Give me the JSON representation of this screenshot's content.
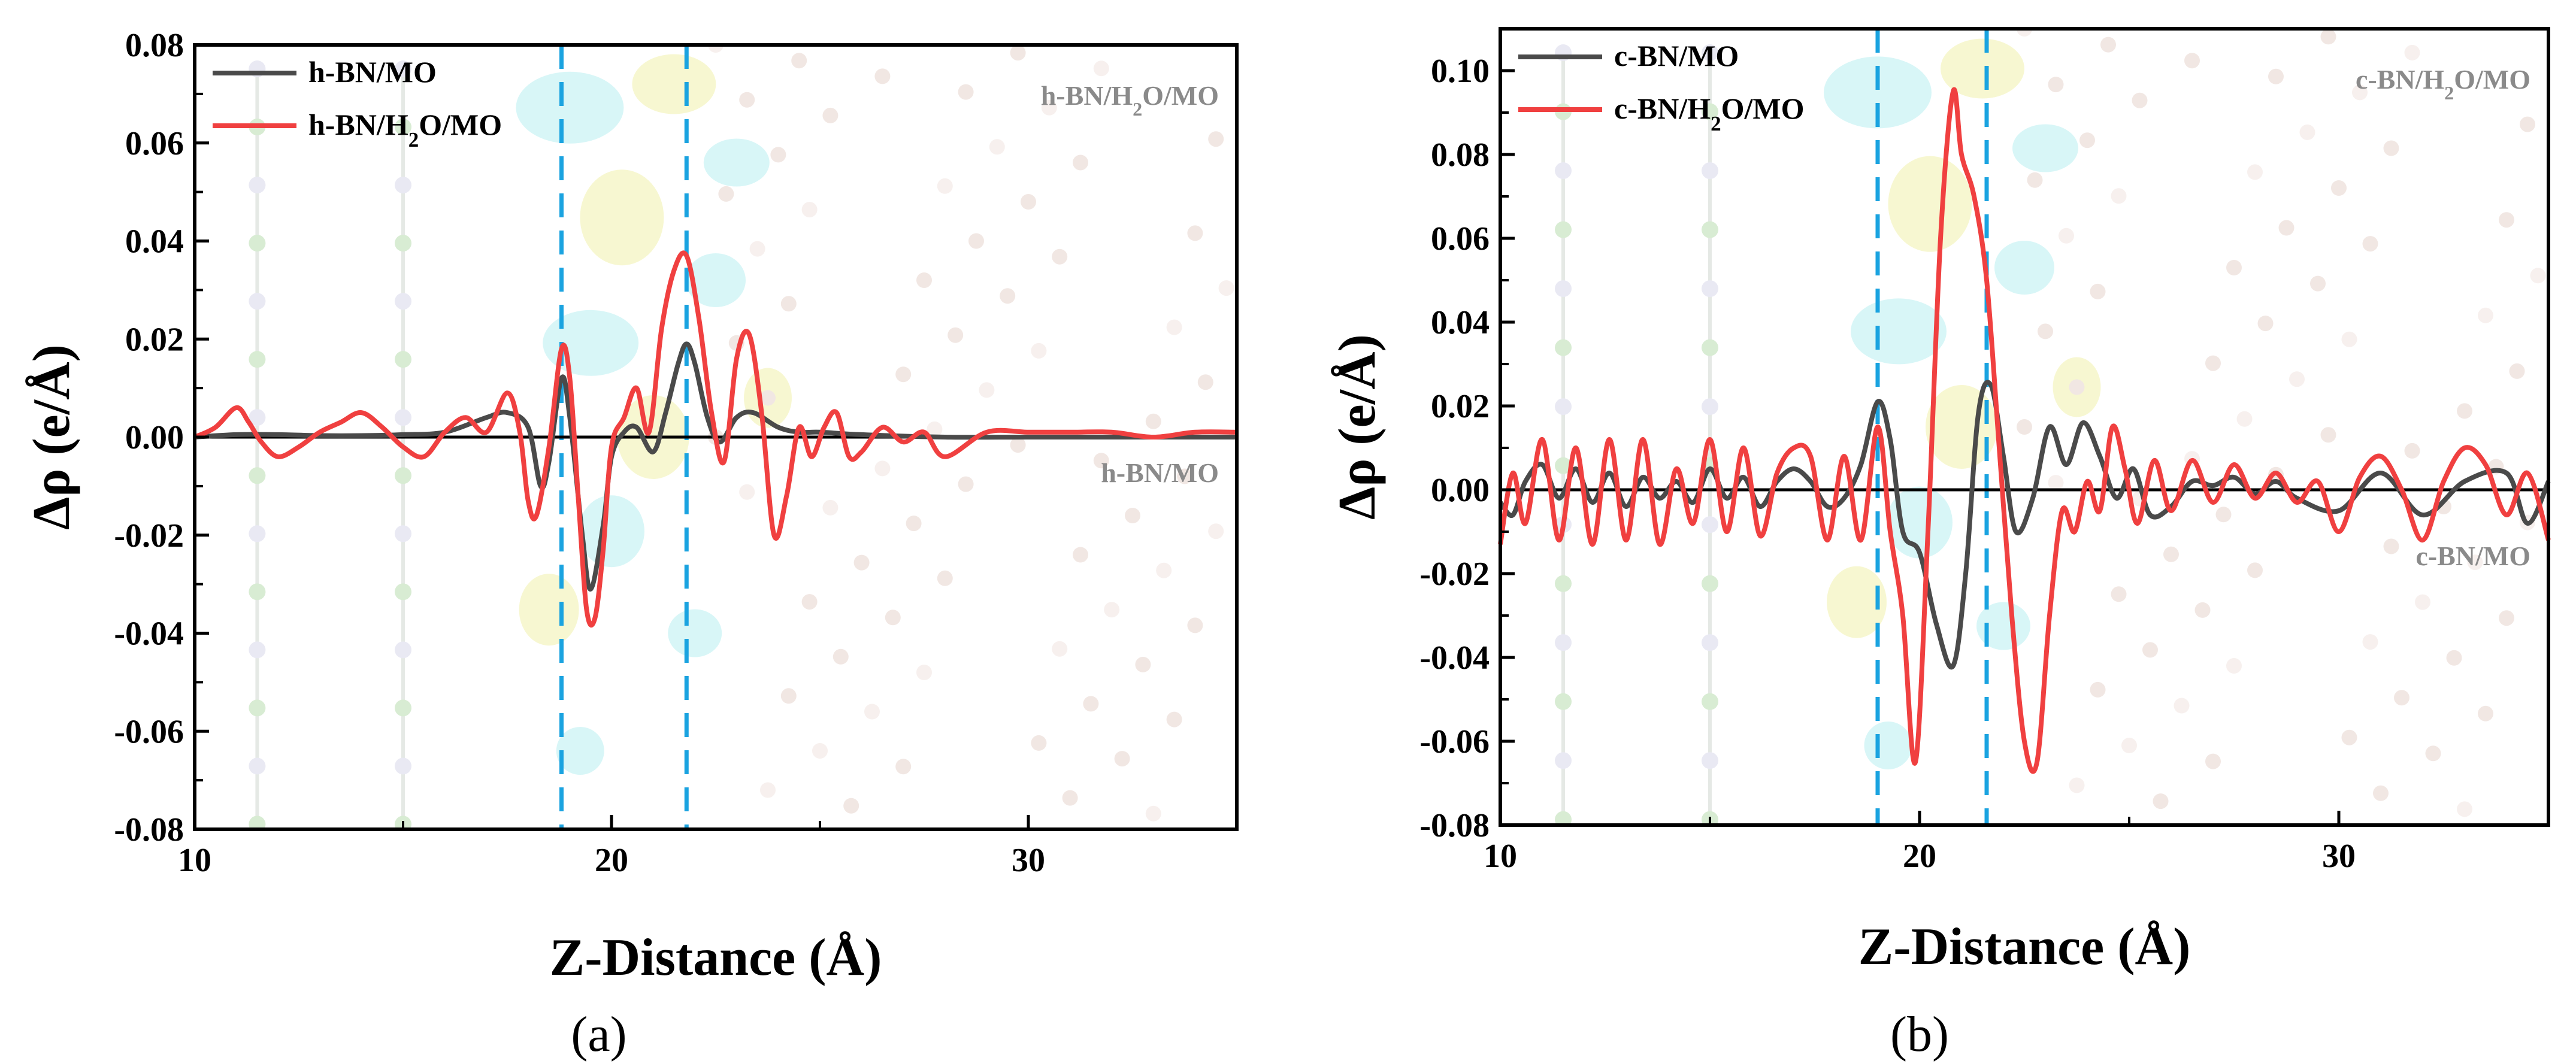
{
  "chart_data": [
    {
      "type": "line",
      "panel": "a",
      "caption": "(a)",
      "xlabel": "Z-Distance (Å)",
      "ylabel": "Δρ (e/Å)",
      "xlim": [
        10,
        35
      ],
      "ylim": [
        -0.08,
        0.08
      ],
      "xticks": [
        "10",
        "20",
        "30"
      ],
      "xtick_values": [
        10,
        20,
        30
      ],
      "yticks": [
        "-0.08",
        "-0.06",
        "-0.04",
        "-0.02",
        "0.00",
        "0.02",
        "0.04",
        "0.06",
        "0.08"
      ],
      "ytick_values": [
        -0.08,
        -0.06,
        -0.04,
        -0.02,
        0.0,
        0.02,
        0.04,
        0.06,
        0.08
      ],
      "vlines": [
        18.8,
        21.8
      ],
      "zero_line": 0,
      "annotations": {
        "top": "h-BN/H2O/MO",
        "bottom": "h-BN/MO"
      },
      "legend": {
        "position": "top-left"
      },
      "series": [
        {
          "name": "h-BN/MO",
          "color": "#4a4a4a",
          "x": [
            10,
            11,
            12,
            13,
            14,
            15,
            16,
            17,
            17.5,
            18,
            18.3,
            18.5,
            18.8,
            19,
            19.3,
            19.5,
            19.8,
            20,
            20.3,
            20.6,
            21,
            21.3,
            21.6,
            21.8,
            22,
            22.3,
            22.6,
            23,
            23.4,
            24,
            24.5,
            25,
            26,
            28,
            30,
            32,
            35
          ],
          "values": [
            0,
            0.0005,
            0.0005,
            0.0003,
            0.0003,
            0.0005,
            0.001,
            0.004,
            0.005,
            0.002,
            -0.01,
            -0.005,
            0.012,
            0.004,
            -0.02,
            -0.031,
            -0.018,
            -0.004,
            0.001,
            0.002,
            -0.003,
            0.005,
            0.015,
            0.019,
            0.015,
            0.004,
            -0.001,
            0.004,
            0.005,
            0.002,
            0.001,
            0.001,
            0.0005,
            0,
            0,
            0,
            0
          ]
        },
        {
          "name": "h-BN/H2O/MO",
          "color": "#f04040",
          "x": [
            10,
            10.5,
            11,
            11.3,
            11.6,
            12,
            12.5,
            13,
            13.5,
            14,
            14.5,
            15,
            15.5,
            16,
            16.5,
            17,
            17.5,
            17.8,
            18,
            18.2,
            18.5,
            18.8,
            19,
            19.2,
            19.4,
            19.6,
            19.8,
            20,
            20.3,
            20.6,
            20.9,
            21.2,
            21.5,
            21.8,
            22.1,
            22.4,
            22.7,
            23,
            23.3,
            23.6,
            23.9,
            24.2,
            24.5,
            24.8,
            25.1,
            25.4,
            25.7,
            26,
            26.5,
            27,
            27.5,
            28,
            29,
            30,
            31,
            32,
            33,
            34,
            35
          ],
          "values": [
            0,
            0.002,
            0.006,
            0.003,
            -0.001,
            -0.004,
            -0.002,
            0.001,
            0.003,
            0.005,
            0.002,
            -0.002,
            -0.004,
            0.001,
            0.004,
            0.001,
            0.009,
            0.001,
            -0.013,
            -0.016,
            -0.002,
            0.018,
            0.012,
            -0.012,
            -0.035,
            -0.037,
            -0.023,
            -0.002,
            0.004,
            0.01,
            0.001,
            0.022,
            0.034,
            0.037,
            0.024,
            0.005,
            -0.005,
            0.016,
            0.021,
            0.005,
            -0.02,
            -0.012,
            0.002,
            -0.004,
            0.002,
            0.005,
            -0.004,
            -0.003,
            0.002,
            -0.001,
            0.001,
            -0.004,
            0.001,
            0.001,
            0.001,
            0.001,
            0,
            0.001,
            0.001
          ]
        }
      ]
    },
    {
      "type": "line",
      "panel": "b",
      "caption": "(b)",
      "xlabel": "Z-Distance (Å)",
      "ylabel": "Δρ (e/Å)",
      "xlim": [
        10,
        35
      ],
      "ylim": [
        -0.08,
        0.11
      ],
      "xticks": [
        "10",
        "20",
        "30"
      ],
      "xtick_values": [
        10,
        20,
        30
      ],
      "yticks": [
        "-0.08",
        "-0.06",
        "-0.04",
        "-0.02",
        "0.00",
        "0.02",
        "0.04",
        "0.06",
        "0.08",
        "0.10"
      ],
      "ytick_values": [
        -0.08,
        -0.06,
        -0.04,
        -0.02,
        0.0,
        0.02,
        0.04,
        0.06,
        0.08,
        0.1
      ],
      "vlines": [
        19.0,
        21.6
      ],
      "zero_line": 0,
      "annotations": {
        "top": "c-BN/H2O/MO",
        "bottom": "c-BN/MO"
      },
      "legend": {
        "position": "top-left"
      },
      "series": [
        {
          "name": "c-BN/MO",
          "color": "#4a4a4a",
          "x": [
            10,
            10.3,
            10.6,
            11,
            11.4,
            11.8,
            12.2,
            12.6,
            13,
            13.4,
            13.8,
            14.2,
            14.6,
            15,
            15.4,
            15.8,
            16.2,
            16.6,
            17,
            17.4,
            17.8,
            18.2,
            18.6,
            19,
            19.3,
            19.6,
            20,
            20.4,
            20.8,
            21.1,
            21.4,
            21.7,
            22,
            22.3,
            22.7,
            23.1,
            23.5,
            23.9,
            24.3,
            24.7,
            25.1,
            25.5,
            26,
            26.5,
            27,
            27.5,
            28,
            28.5,
            29,
            30,
            31,
            32,
            33,
            34,
            34.5,
            35
          ],
          "values": [
            -0.003,
            -0.006,
            0.002,
            0.006,
            -0.002,
            0.005,
            -0.003,
            0.004,
            -0.004,
            0.003,
            -0.002,
            0.002,
            -0.003,
            0.005,
            -0.002,
            0.003,
            -0.004,
            0.002,
            0.005,
            0.002,
            -0.004,
            -0.002,
            0.006,
            0.021,
            0.012,
            -0.01,
            -0.015,
            -0.032,
            -0.042,
            -0.02,
            0.018,
            0.025,
            0.008,
            -0.01,
            -0.002,
            0.015,
            0.006,
            0.016,
            0.008,
            -0.002,
            0.005,
            -0.006,
            -0.004,
            0.002,
            0.001,
            0.003,
            -0.001,
            0.002,
            -0.002,
            -0.005,
            0.004,
            -0.006,
            0.002,
            0.004,
            -0.008,
            0.002
          ]
        },
        {
          "name": "c-BN/H2O/MO",
          "color": "#f04040",
          "x": [
            10,
            10.3,
            10.6,
            11,
            11.4,
            11.8,
            12.2,
            12.6,
            13,
            13.4,
            13.8,
            14.2,
            14.6,
            15,
            15.4,
            15.8,
            16.2,
            16.6,
            17,
            17.4,
            17.8,
            18.2,
            18.6,
            19,
            19.3,
            19.6,
            19.9,
            20.2,
            20.5,
            20.8,
            21,
            21.3,
            21.6,
            21.9,
            22.2,
            22.5,
            22.8,
            23.1,
            23.4,
            23.7,
            24,
            24.3,
            24.6,
            24.9,
            25.2,
            25.6,
            26,
            26.5,
            27,
            27.5,
            28,
            28.5,
            29,
            29.5,
            30,
            30.5,
            31,
            31.5,
            32,
            32.5,
            33,
            33.5,
            34,
            34.5,
            35
          ],
          "values": [
            -0.013,
            0.004,
            -0.008,
            0.012,
            -0.012,
            0.01,
            -0.013,
            0.012,
            -0.012,
            0.012,
            -0.013,
            0.005,
            -0.008,
            0.012,
            -0.01,
            0.01,
            -0.011,
            0.004,
            0.01,
            0.008,
            -0.012,
            0.008,
            -0.012,
            0.015,
            -0.01,
            -0.03,
            -0.065,
            -0.01,
            0.06,
            0.095,
            0.08,
            0.07,
            0.05,
            0.01,
            -0.03,
            -0.06,
            -0.065,
            -0.03,
            -0.005,
            -0.01,
            0.002,
            -0.005,
            0.015,
            0.005,
            -0.008,
            0.007,
            -0.005,
            0.007,
            -0.003,
            0.006,
            -0.002,
            0.004,
            -0.003,
            0.002,
            -0.01,
            0.003,
            0.008,
            0.0,
            -0.012,
            0.002,
            0.01,
            0.006,
            -0.006,
            0.004,
            -0.012
          ]
        }
      ]
    }
  ]
}
